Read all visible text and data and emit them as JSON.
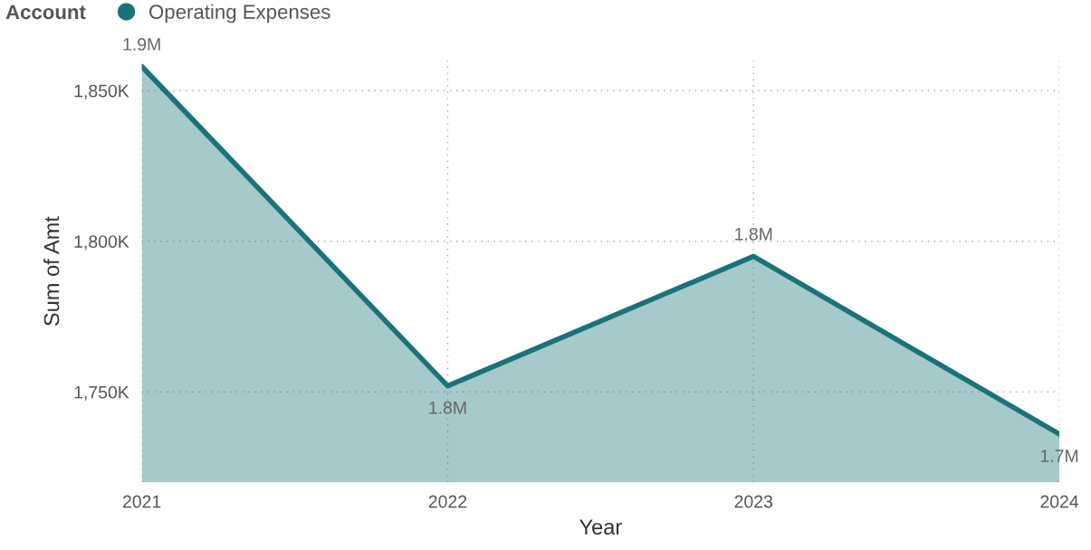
{
  "chart_data": {
    "type": "area",
    "xlabel": "Year",
    "ylabel": "Sum of Amt",
    "legend_title": "Account",
    "categories": [
      "2021",
      "2022",
      "2023",
      "2024"
    ],
    "series": [
      {
        "name": "Operating Expenses",
        "color": "#1a7378",
        "values": [
          1858000,
          1752000,
          1795000,
          1736000
        ],
        "value_labels": [
          "1.9M",
          "1.8M",
          "1.8M",
          "1.7M"
        ]
      }
    ],
    "ylim": [
      1720000,
      1860000
    ],
    "yticks": [
      {
        "value": 1750000,
        "label": "1,750K"
      },
      {
        "value": 1800000,
        "label": "1,800K"
      },
      {
        "value": 1850000,
        "label": "1,850K"
      }
    ],
    "grid": true,
    "legend": "top left",
    "marker": "none",
    "line_style": "solid"
  }
}
